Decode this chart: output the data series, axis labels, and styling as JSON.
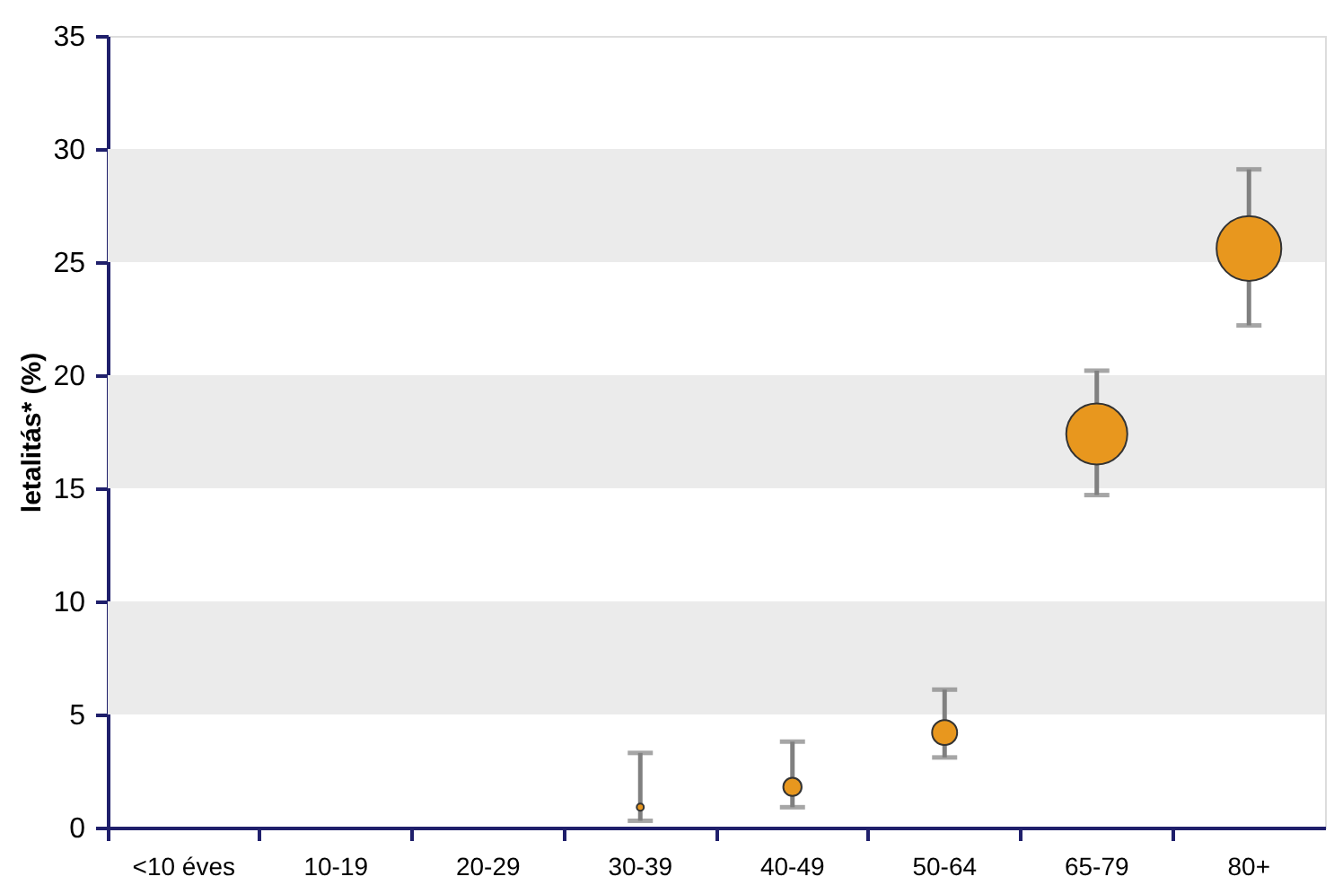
{
  "chart_data": {
    "type": "bubble",
    "ylabel": "letalitás* (%)",
    "categories": [
      "<10 éves",
      "10-19",
      "20-29",
      "30-39",
      "40-49",
      "50-64",
      "65-79",
      "80+"
    ],
    "values": [
      null,
      null,
      null,
      0.9,
      1.8,
      4.2,
      17.4,
      25.6
    ],
    "sizes": [
      null,
      null,
      null,
      0.012,
      0.08,
      0.15,
      0.89,
      1
    ],
    "errors": [
      null,
      null,
      null,
      [
        0.3,
        3.3
      ],
      [
        0.9,
        3.8
      ],
      [
        3.1,
        6.1
      ],
      [
        14.7,
        20.2
      ],
      [
        22.2,
        29.1
      ]
    ],
    "color": "#e8971e",
    "ylim": [
      0,
      35
    ],
    "yticks": [
      0,
      5,
      10,
      15,
      20,
      25,
      30,
      35
    ],
    "bands": [
      {
        "axis": "y",
        "from": 5,
        "to": 10,
        "color": "#ebebeb"
      },
      {
        "axis": "y",
        "from": 15,
        "to": 20,
        "color": "#ebebeb"
      },
      {
        "axis": "y",
        "from": 25,
        "to": 30,
        "color": "#ebebeb"
      }
    ],
    "grid": false,
    "legend": false
  }
}
